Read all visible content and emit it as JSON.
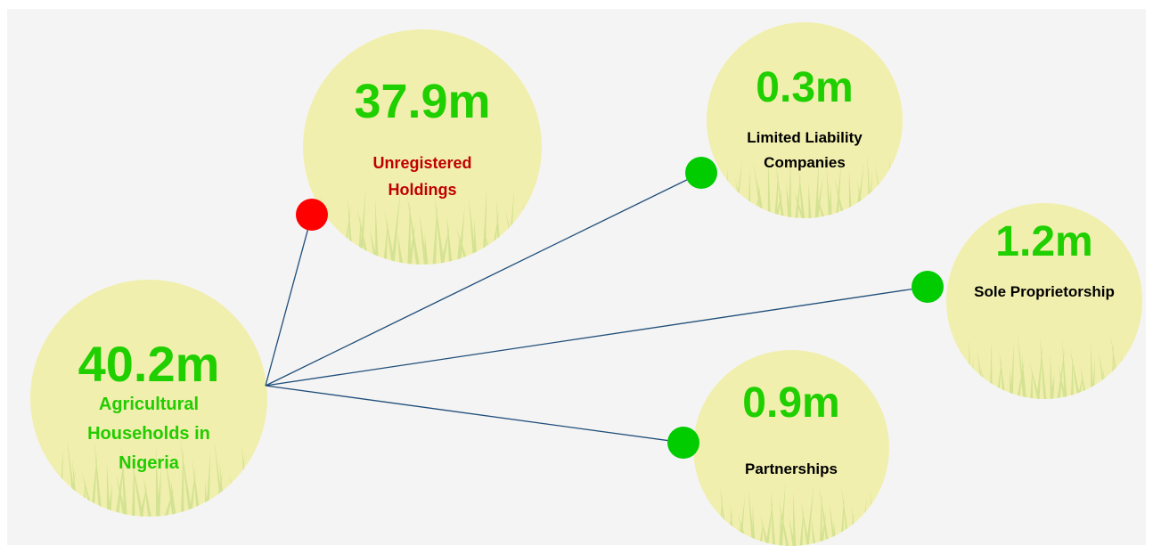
{
  "nodes": [
    {
      "value": "40.2m",
      "label": "Agricultural Households in Nigeria"
    },
    {
      "value": "37.9m",
      "label": "Unregistered Holdings"
    },
    {
      "value": "0.3m",
      "label": "Limited Liability Companies"
    },
    {
      "value": "1.2m",
      "label": "Sole Proprietorship"
    },
    {
      "value": "0.9m",
      "label": "Partnerships"
    }
  ]
}
